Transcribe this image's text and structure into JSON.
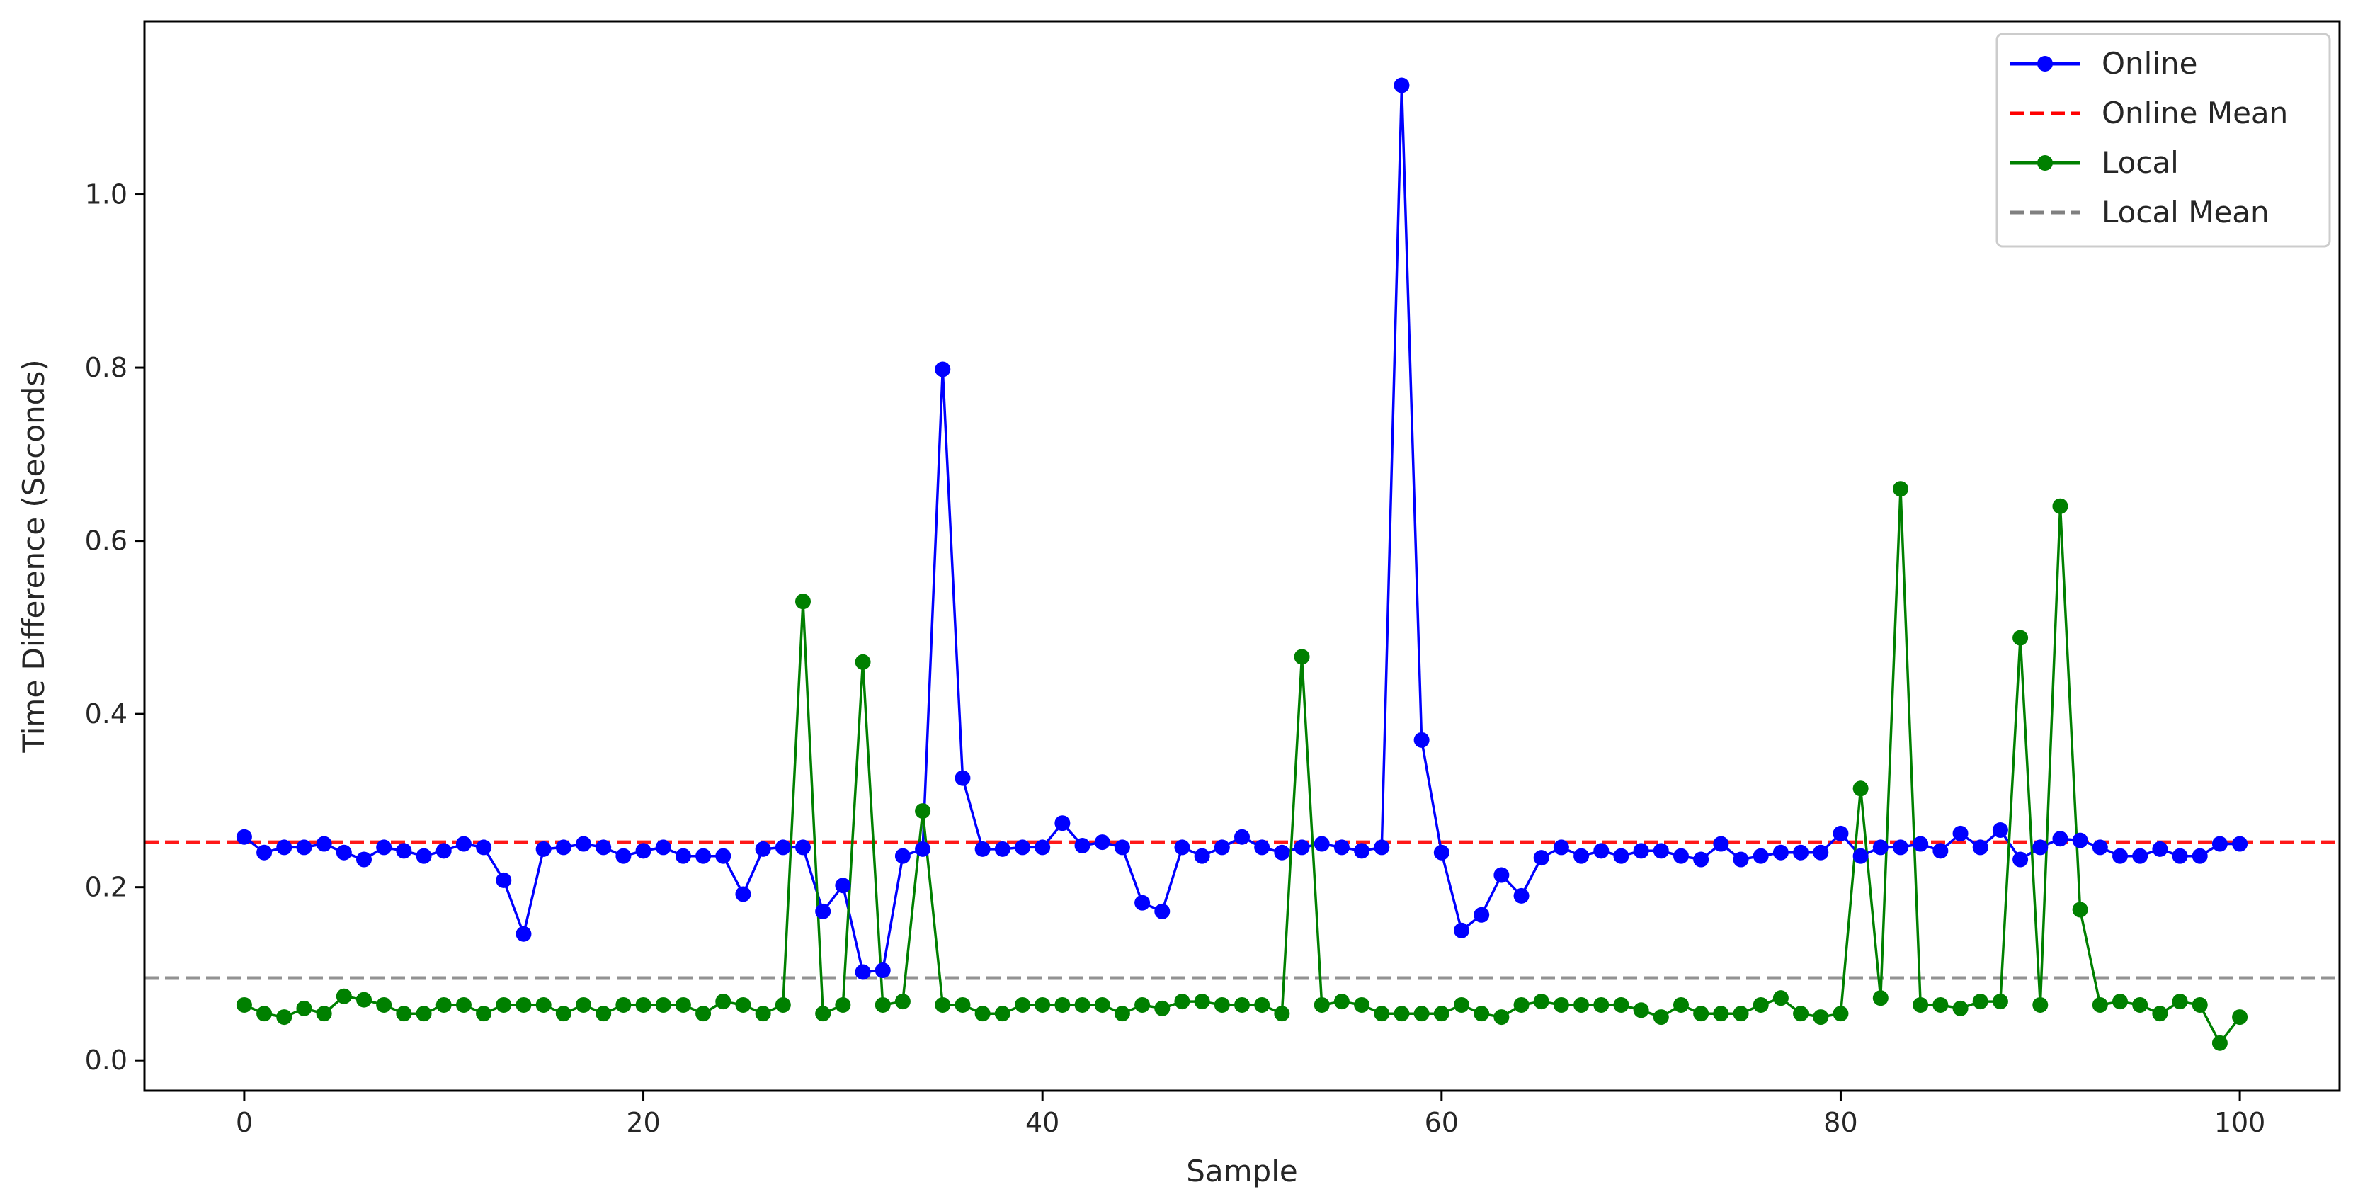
{
  "chart_data": {
    "type": "line",
    "xlabel": "Sample",
    "ylabel": "Time Difference (Seconds)",
    "xlim": [
      -5,
      105
    ],
    "ylim": [
      -0.035,
      1.2
    ],
    "xticks": [
      0,
      20,
      40,
      60,
      80,
      100
    ],
    "xtick_labels": [
      "0",
      "20",
      "40",
      "60",
      "80",
      "100"
    ],
    "yticks": [
      0.0,
      0.2,
      0.4,
      0.6,
      0.8,
      1.0
    ],
    "ytick_labels": [
      "0.0",
      "0.2",
      "0.4",
      "0.6",
      "0.8",
      "1.0"
    ],
    "grid": false,
    "legend_position": "top-right",
    "series": [
      {
        "name": "Online",
        "color": "#0000ff",
        "marker": "circle",
        "values": [
          0.258,
          0.24,
          0.246,
          0.246,
          0.25,
          0.24,
          0.232,
          0.246,
          0.242,
          0.236,
          0.242,
          0.25,
          0.246,
          0.208,
          0.146,
          0.244,
          0.246,
          0.25,
          0.246,
          0.236,
          0.242,
          0.246,
          0.236,
          0.236,
          0.236,
          0.192,
          0.244,
          0.246,
          0.246,
          0.172,
          0.202,
          0.102,
          0.104,
          0.236,
          0.244,
          0.798,
          0.326,
          0.244,
          0.244,
          0.246,
          0.246,
          0.274,
          0.248,
          0.252,
          0.246,
          0.182,
          0.172,
          0.246,
          0.236,
          0.246,
          0.258,
          0.246,
          0.24,
          0.246,
          0.25,
          0.246,
          0.242,
          0.246,
          1.126,
          0.37,
          0.24,
          0.15,
          0.168,
          0.214,
          0.19,
          0.234,
          0.246,
          0.236,
          0.242,
          0.236,
          0.242,
          0.242,
          0.236,
          0.232,
          0.25,
          0.232,
          0.236,
          0.24,
          0.24,
          0.24,
          0.262,
          0.236,
          0.246,
          0.246,
          0.25,
          0.242,
          0.262,
          0.246,
          0.266,
          0.232,
          0.246,
          0.256,
          0.254,
          0.246,
          0.236,
          0.236,
          0.244,
          0.236,
          0.236,
          0.25,
          0.25
        ]
      },
      {
        "name": "Online Mean",
        "color": "#ff0000",
        "linestyle": "dashed",
        "value": 0.252
      },
      {
        "name": "Local",
        "color": "#008000",
        "marker": "circle",
        "values": [
          0.064,
          0.054,
          0.05,
          0.06,
          0.054,
          0.074,
          0.07,
          0.064,
          0.054,
          0.054,
          0.064,
          0.064,
          0.054,
          0.064,
          0.064,
          0.064,
          0.054,
          0.064,
          0.054,
          0.064,
          0.064,
          0.064,
          0.064,
          0.054,
          0.068,
          0.064,
          0.054,
          0.064,
          0.53,
          0.054,
          0.064,
          0.46,
          0.064,
          0.068,
          0.288,
          0.064,
          0.064,
          0.054,
          0.054,
          0.064,
          0.064,
          0.064,
          0.064,
          0.064,
          0.054,
          0.064,
          0.06,
          0.068,
          0.068,
          0.064,
          0.064,
          0.064,
          0.054,
          0.466,
          0.064,
          0.068,
          0.064,
          0.054,
          0.054,
          0.054,
          0.054,
          0.064,
          0.054,
          0.05,
          0.064,
          0.068,
          0.064,
          0.064,
          0.064,
          0.064,
          0.058,
          0.05,
          0.064,
          0.054,
          0.054,
          0.054,
          0.064,
          0.072,
          0.054,
          0.05,
          0.054,
          0.314,
          0.072,
          0.66,
          0.064,
          0.064,
          0.06,
          0.068,
          0.068,
          0.488,
          0.064,
          0.64,
          0.174,
          0.064,
          0.068,
          0.064,
          0.054,
          0.068,
          0.064,
          0.02,
          0.05
        ]
      },
      {
        "name": "Local Mean",
        "color": "#808080",
        "linestyle": "dashed",
        "value": 0.095
      }
    ]
  }
}
